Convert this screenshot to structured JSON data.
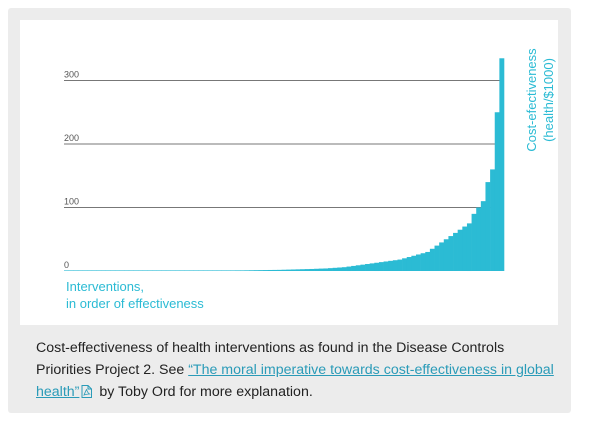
{
  "chart_data": {
    "type": "bar",
    "xlabel_lines": [
      "Interventions,",
      "in order of effectiveness"
    ],
    "ylabel_lines": [
      "Cost-efectiveness",
      "(health/$1000)"
    ],
    "yticks": [
      0,
      100,
      200,
      300
    ],
    "ylim": [
      0,
      335
    ],
    "grid": true,
    "bar_color": "#2bbbd4",
    "values": [
      0.1,
      0.1,
      0.1,
      0.1,
      0.1,
      0.1,
      0.1,
      0.1,
      0.1,
      0.1,
      0.1,
      0.2,
      0.2,
      0.2,
      0.2,
      0.2,
      0.2,
      0.2,
      0.2,
      0.3,
      0.3,
      0.3,
      0.3,
      0.3,
      0.4,
      0.4,
      0.4,
      0.5,
      0.5,
      0.5,
      0.6,
      0.6,
      0.7,
      0.7,
      0.8,
      0.8,
      0.9,
      1,
      1,
      1.1,
      1.2,
      1.3,
      1.4,
      1.5,
      1.6,
      1.7,
      1.8,
      2,
      2.2,
      2.4,
      2.6,
      2.8,
      3,
      3.2,
      3.5,
      3.8,
      4,
      4.5,
      5,
      5.5,
      6,
      7,
      8,
      9,
      10,
      11,
      12,
      13,
      14,
      15,
      16,
      17,
      18,
      20,
      22,
      24,
      26,
      28,
      30,
      35,
      40,
      45,
      50,
      55,
      60,
      65,
      70,
      75,
      90,
      100,
      110,
      140,
      160,
      250,
      335
    ]
  },
  "caption": {
    "text_before": "Cost-effectiveness of health interventions as found in the Disease Controls Priorities Project 2. See ",
    "link_text": "“The moral imperative towards cost-effectiveness in global health”",
    "text_after": " by Toby Ord for more explanation."
  },
  "colors": {
    "accent": "#2bbbd4",
    "link": "#2a9bb8",
    "card_bg": "#ececec",
    "grid": "#777777"
  },
  "icons": {
    "pdf": "pdf-file-icon"
  }
}
